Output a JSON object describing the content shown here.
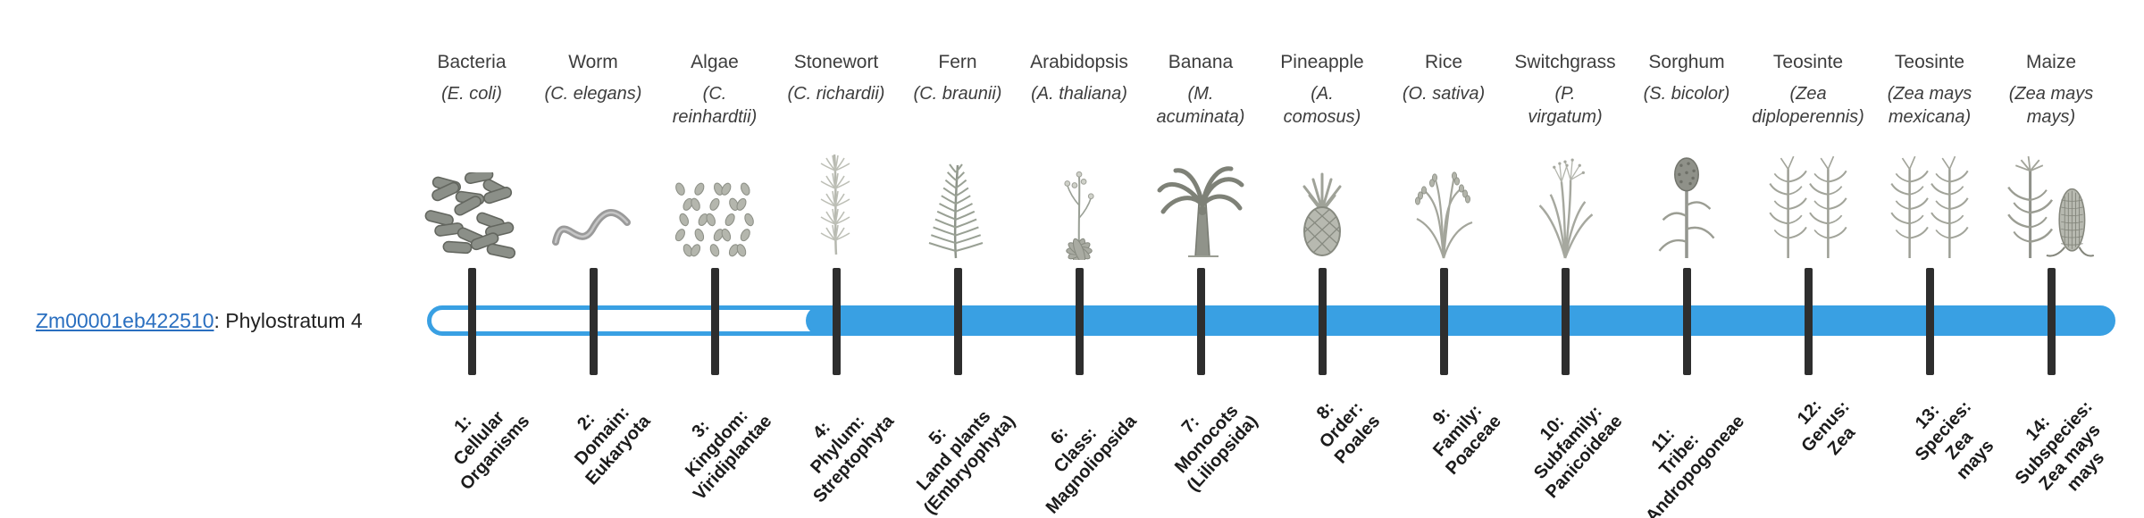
{
  "gene": {
    "id": "Zm00001eb422510",
    "suffix": ": Phylostratum 4",
    "phylostratum": 4,
    "link_color": "#2a6fc0"
  },
  "timeline": {
    "bar_color": "#39a0e3",
    "tick_color": "#2e2e2e",
    "fill_start_stratum": 4,
    "strata_count": 14
  },
  "organisms": [
    {
      "common": "Bacteria",
      "scientific": "(E. coli)",
      "icon": "bacteria-icon",
      "stratum_label": "1:\nCellular\nOrganisms"
    },
    {
      "common": "Worm",
      "scientific": "(C. elegans)",
      "icon": "worm-icon",
      "stratum_label": "2:\nDomain:\nEukaryota"
    },
    {
      "common": "Algae",
      "scientific": "(C.\nreinhardtii)",
      "icon": "algae-icon",
      "stratum_label": "3:\nKingdom:\nViridiplantae"
    },
    {
      "common": "Stonewort",
      "scientific": "(C. richardii)",
      "icon": "stonewort-icon",
      "stratum_label": "4:\nPhylum:\nStreptophyta"
    },
    {
      "common": "Fern",
      "scientific": "(C. braunii)",
      "icon": "fern-icon",
      "stratum_label": "5:\nLand plants\n(Embryophyta)"
    },
    {
      "common": "Arabidopsis",
      "scientific": "(A. thaliana)",
      "icon": "arabidopsis-icon",
      "stratum_label": "6:\nClass:\nMagnoliopsida"
    },
    {
      "common": "Banana",
      "scientific": "(M.\nacuminata)",
      "icon": "banana-icon",
      "stratum_label": "7:\nMonocots\n(Liliopsida)"
    },
    {
      "common": "Pineapple",
      "scientific": "(A.\ncomosus)",
      "icon": "pineapple-icon",
      "stratum_label": "8:\nOrder:\nPoales"
    },
    {
      "common": "Rice",
      "scientific": "(O. sativa)",
      "icon": "rice-icon",
      "stratum_label": "9:\nFamily:\nPoaceae"
    },
    {
      "common": "Switchgrass",
      "scientific": "(P.\nvirgatum)",
      "icon": "switchgrass-icon",
      "stratum_label": "10:\nSubfamily:\nPanicoideae"
    },
    {
      "common": "Sorghum",
      "scientific": "(S. bicolor)",
      "icon": "sorghum-icon",
      "stratum_label": "11:\nTribe:\nAndropogoneae"
    },
    {
      "common": "Teosinte",
      "scientific": "(Zea\ndiploperennis)",
      "icon": "teosinte-icon",
      "stratum_label": "12:\nGenus:\nZea"
    },
    {
      "common": "Teosinte",
      "scientific": "(Zea mays\nmexicana)",
      "icon": "teosinte-icon",
      "stratum_label": "13:\nSpecies:\nZea\nmays"
    },
    {
      "common": "Maize",
      "scientific": "(Zea mays\nmays)",
      "icon": "maize-icon",
      "stratum_label": "14:\nSubspecies:\nZea mays\nmays"
    }
  ]
}
